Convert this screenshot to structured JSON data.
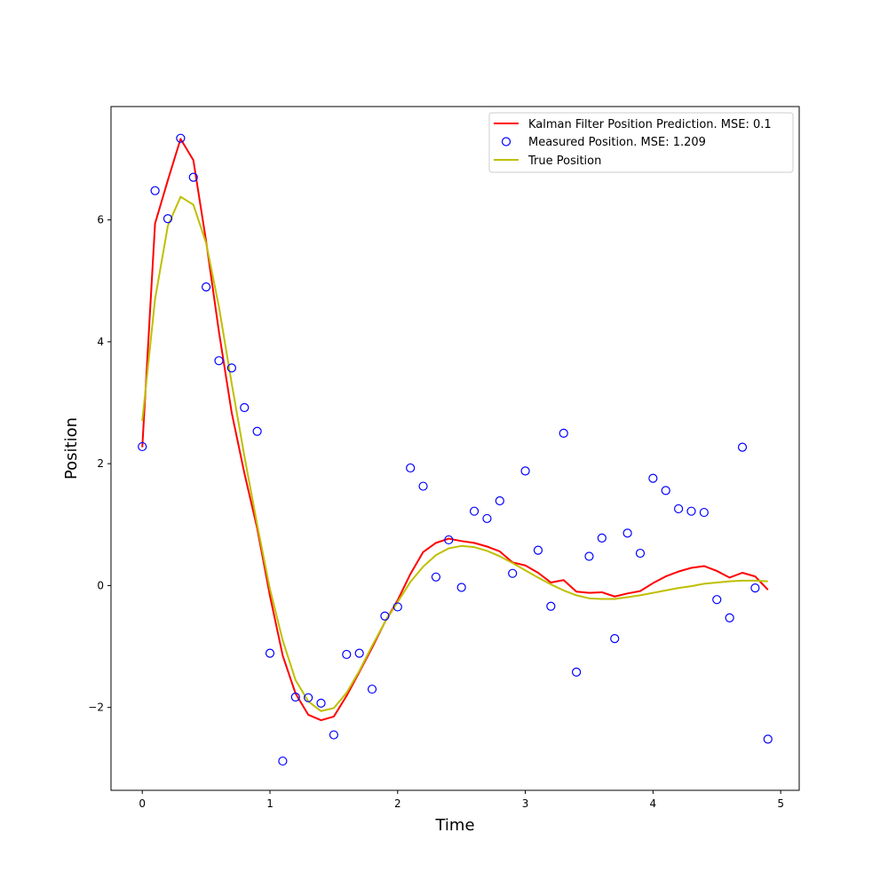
{
  "chart_data": {
    "type": "line",
    "title": "",
    "xlabel": "Time",
    "ylabel": "Position",
    "xlim": [
      -0.245,
      5.145
    ],
    "ylim": [
      -3.36,
      7.86
    ],
    "grid": false,
    "legend_position": "top-right",
    "xticks": [
      0,
      1,
      2,
      3,
      4,
      5
    ],
    "xtick_labels": [
      "0",
      "1",
      "2",
      "3",
      "4",
      "5"
    ],
    "yticks": [
      -2,
      0,
      2,
      4,
      6
    ],
    "ytick_labels": [
      "−2",
      "0",
      "2",
      "4",
      "6"
    ],
    "x": [
      0.0,
      0.1,
      0.2,
      0.3,
      0.4,
      0.5,
      0.6,
      0.7,
      0.8,
      0.9,
      1.0,
      1.1,
      1.2,
      1.3,
      1.4,
      1.5,
      1.6,
      1.7,
      1.8,
      1.9,
      2.0,
      2.1,
      2.2,
      2.3,
      2.4,
      2.5,
      2.6,
      2.7,
      2.8,
      2.9,
      3.0,
      3.1,
      3.2,
      3.3,
      3.4,
      3.5,
      3.6,
      3.7,
      3.8,
      3.9,
      4.0,
      4.1,
      4.2,
      4.3,
      4.4,
      4.5,
      4.6,
      4.7,
      4.8,
      4.9
    ],
    "series": [
      {
        "name": "Kalman Filter Position Prediction. MSE: 0.1",
        "kind": "line",
        "color": "#ff0000",
        "values": [
          2.27,
          5.94,
          6.65,
          7.33,
          6.98,
          5.65,
          4.17,
          2.84,
          1.84,
          0.94,
          -0.17,
          -1.15,
          -1.77,
          -2.12,
          -2.21,
          -2.15,
          -1.81,
          -1.42,
          -1.02,
          -0.6,
          -0.24,
          0.19,
          0.55,
          0.7,
          0.77,
          0.73,
          0.7,
          0.64,
          0.56,
          0.38,
          0.33,
          0.21,
          0.05,
          0.09,
          -0.1,
          -0.12,
          -0.11,
          -0.18,
          -0.13,
          -0.09,
          0.04,
          0.15,
          0.23,
          0.29,
          0.32,
          0.24,
          0.13,
          0.21,
          0.15,
          -0.07
        ]
      },
      {
        "name": "Measured Position. MSE: 1.209",
        "kind": "scatter",
        "color": "#0000ff",
        "values": [
          2.28,
          6.48,
          6.02,
          7.34,
          6.7,
          4.9,
          3.69,
          3.57,
          2.92,
          2.53,
          -1.11,
          -2.88,
          -1.83,
          -1.84,
          -1.93,
          -2.45,
          -1.13,
          -1.11,
          -1.7,
          -0.5,
          -0.35,
          1.93,
          1.63,
          0.14,
          0.75,
          -0.03,
          1.22,
          1.1,
          1.39,
          0.2,
          1.88,
          0.58,
          -0.34,
          2.5,
          -1.42,
          0.48,
          0.78,
          -0.87,
          0.86,
          0.53,
          1.76,
          1.56,
          1.26,
          1.22,
          1.2,
          -0.23,
          -0.53,
          2.27,
          -0.04,
          -2.52
        ]
      },
      {
        "name": "True Position",
        "kind": "line",
        "color": "#bfbf00",
        "values": [
          2.7,
          4.7,
          5.9,
          6.38,
          6.25,
          5.62,
          4.58,
          3.32,
          2.12,
          1.0,
          -0.06,
          -0.9,
          -1.55,
          -1.9,
          -2.06,
          -2.01,
          -1.76,
          -1.4,
          -0.99,
          -0.6,
          -0.27,
          0.06,
          0.31,
          0.5,
          0.61,
          0.65,
          0.63,
          0.57,
          0.48,
          0.37,
          0.25,
          0.13,
          0.02,
          -0.08,
          -0.16,
          -0.21,
          -0.22,
          -0.22,
          -0.19,
          -0.16,
          -0.12,
          -0.08,
          -0.04,
          -0.01,
          0.03,
          0.05,
          0.07,
          0.08,
          0.08,
          0.07
        ]
      }
    ]
  }
}
